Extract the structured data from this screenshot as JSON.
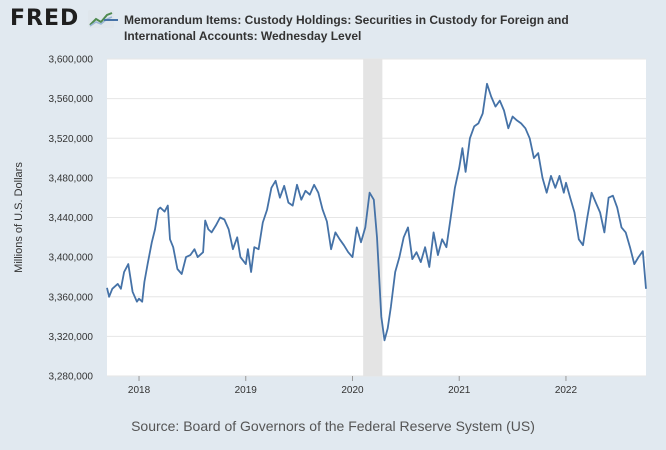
{
  "header": {
    "logo_text": "FRED",
    "legend_text": "Memorandum Items: Custody Holdings: Securities in Custody for Foreign and International Accounts: Wednesday Level"
  },
  "source_text": "Source: Board of Governors of the Federal Reserve System (US)",
  "chart_data": {
    "type": "line",
    "title": "",
    "ylabel": "Millions of U.S. Dollars",
    "ylim": [
      3280000,
      3600000
    ],
    "yticks": [
      3280000,
      3320000,
      3360000,
      3400000,
      3440000,
      3480000,
      3520000,
      3560000,
      3600000
    ],
    "ytick_labels": [
      "3,280,000",
      "3,320,000",
      "3,360,000",
      "3,400,000",
      "3,440,000",
      "3,480,000",
      "3,520,000",
      "3,560,000",
      "3,600,000"
    ],
    "xlim": [
      2017.7,
      2022.75
    ],
    "xticks": [
      2018,
      2019,
      2020,
      2021,
      2022
    ],
    "xtick_labels": [
      "2018",
      "2019",
      "2020",
      "2021",
      "2022"
    ],
    "grid": true,
    "recession_band": [
      2020.1,
      2020.28
    ],
    "line_color": "#4572a7",
    "series": [
      {
        "name": "Memorandum Items: Custody Holdings: Securities in Custody for Foreign and International Accounts: Wednesday Level",
        "x": [
          2017.7,
          2017.72,
          2017.75,
          2017.8,
          2017.83,
          2017.86,
          2017.9,
          2017.94,
          2017.98,
          2018.0,
          2018.03,
          2018.05,
          2018.08,
          2018.12,
          2018.15,
          2018.18,
          2018.2,
          2018.24,
          2018.27,
          2018.29,
          2018.32,
          2018.36,
          2018.4,
          2018.44,
          2018.48,
          2018.52,
          2018.55,
          2018.6,
          2018.62,
          2018.65,
          2018.68,
          2018.72,
          2018.76,
          2018.8,
          2018.84,
          2018.88,
          2018.92,
          2018.95,
          2019.0,
          2019.02,
          2019.05,
          2019.08,
          2019.12,
          2019.16,
          2019.2,
          2019.24,
          2019.28,
          2019.32,
          2019.36,
          2019.4,
          2019.44,
          2019.48,
          2019.52,
          2019.56,
          2019.6,
          2019.64,
          2019.68,
          2019.72,
          2019.76,
          2019.8,
          2019.84,
          2019.88,
          2019.92,
          2019.96,
          2020.0,
          2020.04,
          2020.08,
          2020.12,
          2020.16,
          2020.2,
          2020.23,
          2020.27,
          2020.3,
          2020.33,
          2020.36,
          2020.4,
          2020.44,
          2020.48,
          2020.52,
          2020.56,
          2020.6,
          2020.64,
          2020.68,
          2020.72,
          2020.76,
          2020.8,
          2020.84,
          2020.88,
          2020.92,
          2020.96,
          2021.0,
          2021.03,
          2021.06,
          2021.1,
          2021.14,
          2021.18,
          2021.22,
          2021.26,
          2021.3,
          2021.34,
          2021.38,
          2021.42,
          2021.46,
          2021.5,
          2021.54,
          2021.58,
          2021.62,
          2021.66,
          2021.7,
          2021.74,
          2021.78,
          2021.82,
          2021.86,
          2021.9,
          2021.94,
          2021.98,
          2022.0,
          2022.04,
          2022.08,
          2022.12,
          2022.16,
          2022.2,
          2022.24,
          2022.28,
          2022.32,
          2022.36,
          2022.4,
          2022.44,
          2022.48,
          2022.52,
          2022.56,
          2022.6,
          2022.64,
          2022.68,
          2022.72,
          2022.75
        ],
        "values": [
          3369000,
          3360000,
          3368000,
          3373000,
          3368000,
          3385000,
          3393000,
          3365000,
          3355000,
          3358000,
          3355000,
          3375000,
          3393000,
          3415000,
          3428000,
          3448000,
          3450000,
          3446000,
          3452000,
          3418000,
          3410000,
          3388000,
          3383000,
          3400000,
          3402000,
          3408000,
          3400000,
          3405000,
          3437000,
          3428000,
          3425000,
          3432000,
          3440000,
          3438000,
          3428000,
          3408000,
          3420000,
          3400000,
          3393000,
          3408000,
          3385000,
          3410000,
          3408000,
          3435000,
          3448000,
          3470000,
          3477000,
          3460000,
          3472000,
          3455000,
          3452000,
          3473000,
          3458000,
          3467000,
          3463000,
          3473000,
          3465000,
          3448000,
          3436000,
          3408000,
          3425000,
          3418000,
          3412000,
          3405000,
          3400000,
          3430000,
          3415000,
          3430000,
          3465000,
          3458000,
          3420000,
          3340000,
          3316000,
          3328000,
          3350000,
          3385000,
          3400000,
          3420000,
          3430000,
          3398000,
          3405000,
          3395000,
          3410000,
          3390000,
          3425000,
          3402000,
          3418000,
          3410000,
          3440000,
          3470000,
          3490000,
          3510000,
          3486000,
          3520000,
          3532000,
          3535000,
          3545000,
          3575000,
          3562000,
          3552000,
          3558000,
          3548000,
          3530000,
          3542000,
          3538000,
          3535000,
          3530000,
          3520000,
          3500000,
          3505000,
          3480000,
          3465000,
          3482000,
          3470000,
          3482000,
          3465000,
          3475000,
          3460000,
          3445000,
          3418000,
          3412000,
          3440000,
          3465000,
          3455000,
          3445000,
          3425000,
          3460000,
          3462000,
          3450000,
          3430000,
          3425000,
          3410000,
          3393000,
          3400000,
          3406000,
          3368000
        ]
      }
    ]
  }
}
